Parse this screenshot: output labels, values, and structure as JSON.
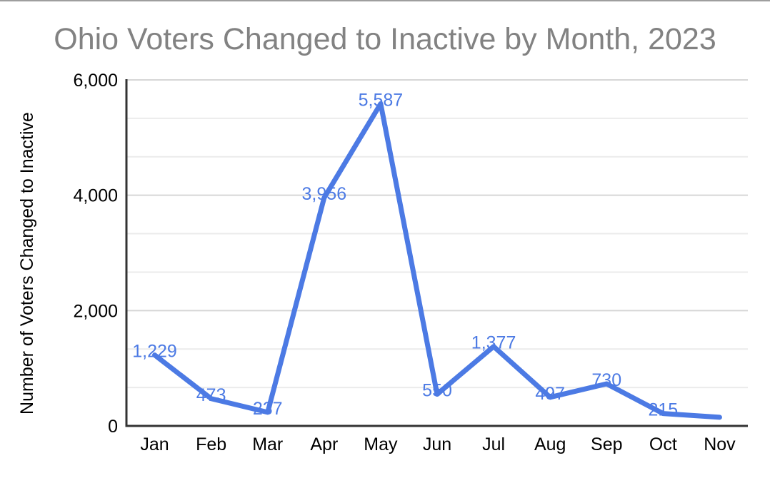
{
  "frame": {
    "top_border_color": "#9e9e9e"
  },
  "chart_data": {
    "type": "line",
    "title": "Ohio Voters Changed to Inactive by Month, 2023",
    "ylabel": "Number of Voters Changed to Inactive",
    "xlabel": "",
    "categories": [
      "Jan",
      "Feb",
      "Mar",
      "Apr",
      "May",
      "Jun",
      "Jul",
      "Aug",
      "Sep",
      "Oct",
      "Nov"
    ],
    "series": [
      {
        "values": [
          1229,
          473,
          237,
          3956,
          5587,
          550,
          1377,
          497,
          730,
          215,
          150
        ],
        "data_labels": [
          "1,229",
          "473",
          "237",
          "3,956",
          "5,587",
          "550",
          "1,377",
          "497",
          "730",
          "215",
          ""
        ]
      }
    ],
    "ylim": [
      0,
      6000
    ],
    "yticks": [
      0,
      2000,
      4000,
      6000
    ],
    "ytick_labels": [
      "0",
      "2,000",
      "4,000",
      "6,000"
    ],
    "minor_gridlines_per_major": 2,
    "grid": true,
    "legend": "none",
    "colors": {
      "line": "#4c7ae4",
      "data_label": "#4c7ae4",
      "title": "#828282",
      "axis_text": "#000000",
      "axis_line": "#333333",
      "gridline_major": "#d6d6d6",
      "gridline_minor": "#ebebeb",
      "background": "#ffffff"
    }
  }
}
